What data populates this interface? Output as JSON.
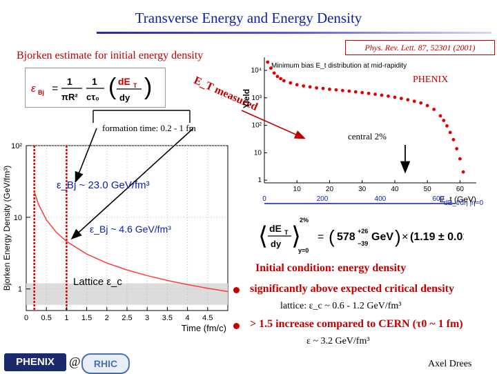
{
  "slide": {
    "title": "Transverse Energy and Energy Density",
    "reference": "Phys. Rev. Lett. 87, 52301 (2001)",
    "bjorken_label": "Bjorken estimate for initial energy density",
    "formation_time": "formation time: 0.2 - 1 fm",
    "et_measured": "E_T measured",
    "phenix_label": "PHENIX",
    "central_label": "central 2%",
    "energy_high": "ε_Bj ~ 23.0 GeV/fm³",
    "energy_low": "ε_Bj ~ 4.6 GeV/fm³",
    "lattice_label": "Lattice ε_c",
    "initial_condition": "Initial condition: energy density",
    "bullet1": "significantly above expected critical density",
    "lattice_line": "lattice: ε_c ~ 0.6 - 1.2 GeV/fm³",
    "bullet2": "> 1.5 increase compared to CERN (τ0 ~ 1 fm)",
    "cern_eps": "ε ~ 3.2 GeV/fm³",
    "author": "Axel Drees",
    "at_sign": "@",
    "logo_phenix": "PHENIX",
    "logo_rhic": "RHIC",
    "result_formula": "⟨dE_T/dy⟩ (2%, y=0) = (578 +26/−39 GeV) × (1.19 ± 0.01)",
    "bjorken_formula": "ε_Bj = 1/(πR²) · 1/(cτ0) · dE_T/dy"
  },
  "colors": {
    "title_blue": "#0b1fa8",
    "accent_red": "#c00000",
    "curve_red": "#ff3a3a"
  },
  "left_chart": {
    "ylabel": "Bjorken Energy Density (GeV/fm³)",
    "xlabel": "Time (fm/c)",
    "xticks": [
      "0",
      "0.5",
      "1",
      "1.5",
      "2",
      "2.5",
      "3",
      "3.5",
      "4",
      "4.5"
    ],
    "yticks": [
      "1",
      "10",
      "10²"
    ],
    "chart_data": {
      "type": "line",
      "xlim": [
        0,
        5
      ],
      "ylog": true,
      "ylim": [
        0.5,
        100
      ],
      "curve": {
        "k": 4.6,
        "x": [
          0.2,
          0.3,
          0.5,
          0.75,
          1,
          1.5,
          2,
          2.5,
          3,
          3.5,
          4,
          4.5,
          5
        ]
      },
      "vlines": [
        0.2,
        1.0
      ],
      "lattice_band": [
        0.6,
        1.2
      ]
    }
  },
  "right_chart": {
    "ylabel": "Yield",
    "title": "Minimum bias E_t distribution at mid-rapidity",
    "phenix": "PHENIX",
    "xlabel": "E_t (GeV)",
    "xlabel2": "dE_t/dη |η=0",
    "xticks": [
      "10",
      "20",
      "30",
      "40",
      "50",
      "60"
    ],
    "xticks2": [
      "0",
      "200",
      "400",
      "600"
    ],
    "yticks": [
      "1",
      "10",
      "10²",
      "10³",
      "10⁴"
    ],
    "chart_data": {
      "type": "scatter",
      "xlim": [
        0,
        65
      ],
      "ylog": true,
      "ylim": [
        0.8,
        30000
      ],
      "x": [
        1,
        2,
        3,
        4,
        5,
        6,
        8,
        10,
        12,
        14,
        16,
        18,
        20,
        22,
        24,
        26,
        28,
        30,
        32,
        34,
        36,
        38,
        40,
        42,
        44,
        46,
        48,
        50,
        52,
        54,
        55,
        56,
        57,
        58,
        59,
        60,
        61
      ],
      "y": [
        20000,
        12000,
        8000,
        6000,
        5000,
        4200,
        3500,
        3000,
        2700,
        2500,
        2300,
        2200,
        2050,
        1950,
        1850,
        1750,
        1650,
        1550,
        1450,
        1350,
        1250,
        1150,
        1050,
        950,
        850,
        750,
        650,
        520,
        380,
        220,
        150,
        95,
        55,
        30,
        14,
        6,
        2
      ]
    }
  }
}
